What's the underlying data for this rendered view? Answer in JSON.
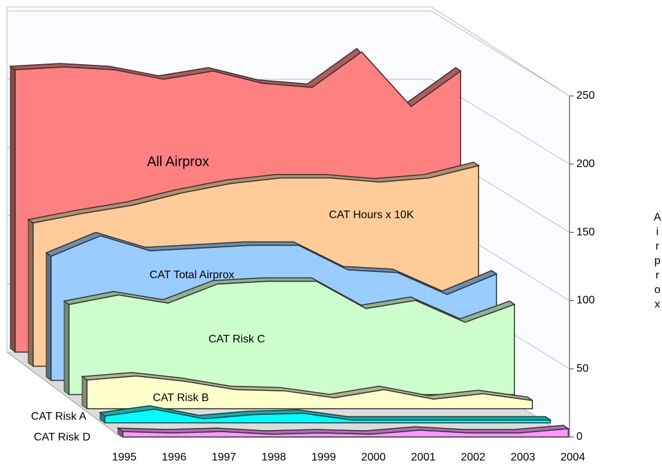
{
  "chart_data": {
    "type": "area3d",
    "y_label": "Airprox",
    "categories": [
      "1995",
      "1996",
      "1997",
      "1998",
      "1999",
      "2000",
      "2001",
      "2002",
      "2003",
      "2004"
    ],
    "ylim": [
      0,
      250
    ],
    "yticks": [
      0,
      50,
      100,
      150,
      200,
      250
    ],
    "grid": true,
    "series": [
      {
        "name": "All Airprox",
        "color": "#ff8080",
        "values": [
          207,
          209,
          207,
          200,
          206,
          197,
          194,
          220,
          180,
          206
        ]
      },
      {
        "name": "CAT Hours x 10K",
        "color": "#ffcc99",
        "values": [
          105,
          112,
          118,
          127,
          134,
          138,
          138,
          135,
          138,
          147
        ]
      },
      {
        "name": "CAT Total Airprox",
        "color": "#99ccff",
        "values": [
          91,
          106,
          95,
          97,
          99,
          99,
          81,
          79,
          63,
          78
        ]
      },
      {
        "name": "CAT Risk C",
        "color": "#ccffcc",
        "values": [
          66,
          73,
          67,
          81,
          83,
          83,
          63,
          69,
          53,
          66
        ]
      },
      {
        "name": "CAT Risk B",
        "color": "#ffffcc",
        "values": [
          21,
          24,
          20,
          14,
          13,
          8,
          14,
          7,
          11,
          6
        ]
      },
      {
        "name": "CAT Risk A",
        "color": "#00ffff",
        "values": [
          5,
          10,
          3,
          6,
          7,
          2,
          2,
          2,
          2,
          2
        ]
      },
      {
        "name": "CAT Risk D",
        "color": "#ff99ff",
        "values": [
          4,
          3,
          4,
          2,
          3,
          2,
          5,
          3,
          3,
          6
        ]
      }
    ]
  }
}
